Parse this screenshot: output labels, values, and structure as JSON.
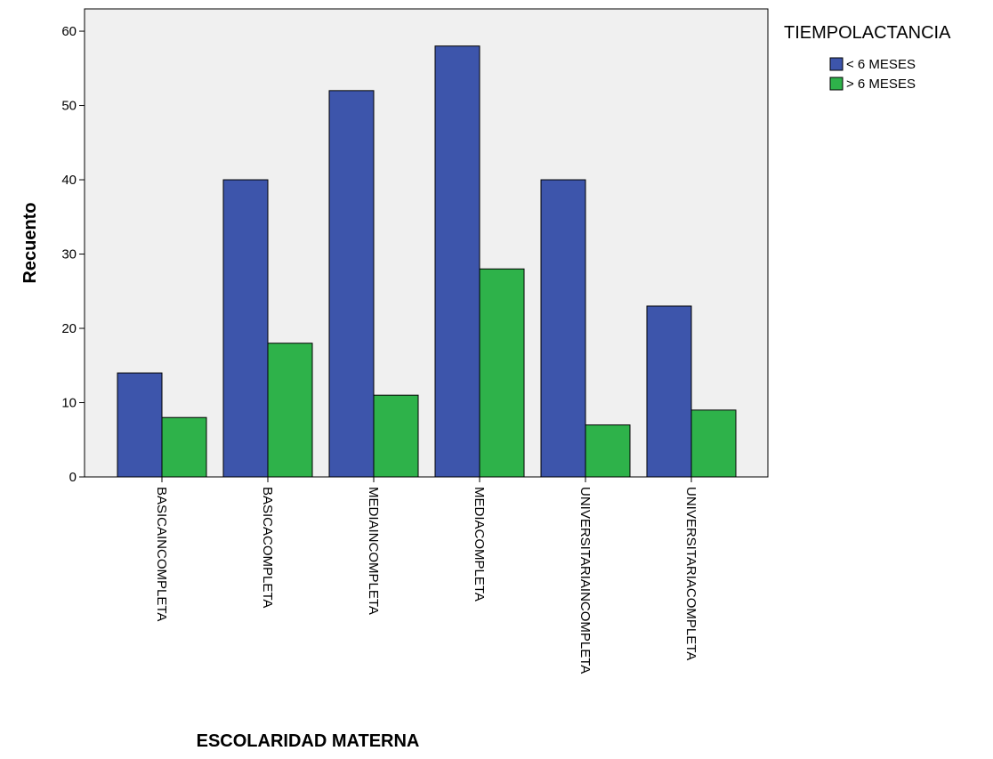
{
  "chart_data": {
    "type": "bar",
    "categories": [
      "BASICAINCOMPLETA",
      "BASICACOMPLETA",
      "MEDIAINCOMPLETA",
      "MEDIACOMPLETA",
      "UNIVERSITARIAINCOMPLETA",
      "UNIVERSITARIACOMPLETA"
    ],
    "series": [
      {
        "name": "< 6 MESES",
        "color": "#3d55ab",
        "values": [
          14,
          40,
          52,
          58,
          40,
          23
        ]
      },
      {
        "name": "> 6 MESES",
        "color": "#2eb24a",
        "values": [
          8,
          18,
          11,
          28,
          7,
          9
        ]
      }
    ],
    "xlabel": "ESCOLARIDAD MATERNA",
    "ylabel": "Recuento",
    "ylim": [
      0,
      63
    ],
    "yticks": [
      0,
      10,
      20,
      30,
      40,
      50,
      60
    ],
    "legend_title": "TIEMPOLACTANCIA",
    "legend_position": "right",
    "plot_background": "#f0f0f0",
    "grid": false
  }
}
